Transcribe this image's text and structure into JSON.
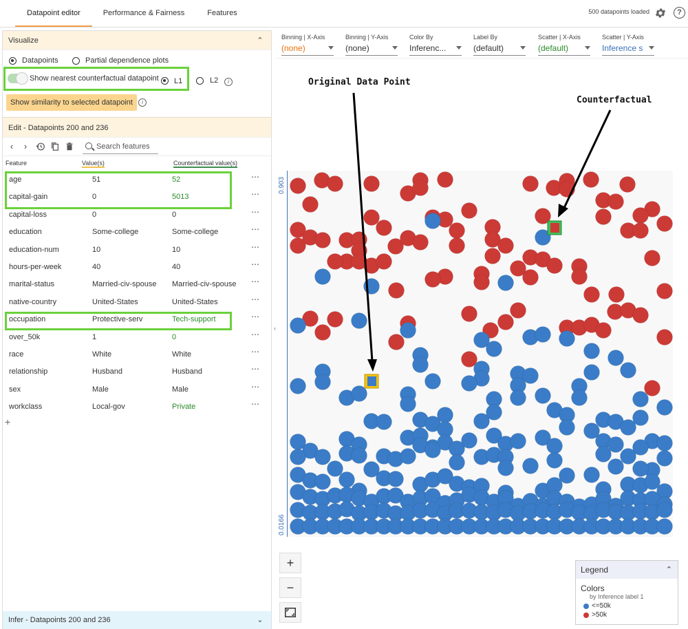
{
  "tabs": [
    {
      "label": "Datapoint editor",
      "active": true
    },
    {
      "label": "Performance & Fairness",
      "active": false
    },
    {
      "label": "Features",
      "active": false
    }
  ],
  "status": {
    "loaded": "500 datapoints loaded"
  },
  "visualize": {
    "title": "Visualize",
    "mode_datapoints": "Datapoints",
    "mode_pdp": "Partial dependence plots",
    "cf_toggle_label": "Show nearest counterfactual datapoint",
    "cf_toggle_on": true,
    "metric_l1": "L1",
    "metric_l2": "L2",
    "metric_selected": "L1",
    "similarity_button": "Show similarity to selected datapoint"
  },
  "edit": {
    "title": "Edit - Datapoints 200 and 236",
    "search_placeholder": "Search features",
    "col_feature": "Feature",
    "col_value": "Value(s)",
    "col_cf": "Counterfactual value(s)",
    "rows": [
      {
        "feature": "age",
        "value": "51",
        "cf": "52",
        "changed": true
      },
      {
        "feature": "capital-gain",
        "value": "0",
        "cf": "5013",
        "changed": true
      },
      {
        "feature": "capital-loss",
        "value": "0",
        "cf": "0",
        "changed": false
      },
      {
        "feature": "education",
        "value": "Some-college",
        "cf": "Some-college",
        "changed": false
      },
      {
        "feature": "education-num",
        "value": "10",
        "cf": "10",
        "changed": false
      },
      {
        "feature": "hours-per-week",
        "value": "40",
        "cf": "40",
        "changed": false
      },
      {
        "feature": "marital-status",
        "value": "Married-civ-spouse",
        "cf": "Married-civ-spouse",
        "changed": false
      },
      {
        "feature": "native-country",
        "value": "United-States",
        "cf": "United-States",
        "changed": false
      },
      {
        "feature": "occupation",
        "value": "Protective-serv",
        "cf": "Tech-support",
        "changed": true
      },
      {
        "feature": "over_50k",
        "value": "1",
        "cf": "0",
        "changed": true
      },
      {
        "feature": "race",
        "value": "White",
        "cf": "White",
        "changed": false
      },
      {
        "feature": "relationship",
        "value": "Husband",
        "cf": "Husband",
        "changed": false
      },
      {
        "feature": "sex",
        "value": "Male",
        "cf": "Male",
        "changed": false
      },
      {
        "feature": "workclass",
        "value": "Local-gov",
        "cf": "Private",
        "changed": true
      }
    ],
    "more_symbol": "⋯",
    "add_symbol": "+"
  },
  "infer": {
    "title": "Infer - Datapoints 200 and 236"
  },
  "controls": [
    {
      "label": "Binning | X-Axis",
      "value": "(none)",
      "color": "#e8710a"
    },
    {
      "label": "Binning | Y-Axis",
      "value": "(none)",
      "color": "#333333"
    },
    {
      "label": "Color By",
      "value": "Inferenc...",
      "color": "#333333"
    },
    {
      "label": "Label By",
      "value": "(default)",
      "color": "#333333"
    },
    {
      "label": "Scatter | X-Axis",
      "value": "(default)",
      "color": "#2a8a2a"
    },
    {
      "label": "Scatter | Y-Axis",
      "value": "Inference s",
      "color": "#3a70b5"
    }
  ],
  "plot": {
    "y_max_label": "0.903",
    "y_min_label": "0.0166",
    "zoom_in": "+",
    "zoom_out": "−",
    "original_label": "Original Data Point",
    "counterfactual_label": "Counterfactual"
  },
  "legend": {
    "title": "Legend",
    "colors_label": "Colors",
    "by_label": "by Inference label 1",
    "items": [
      {
        "label": "<=50k",
        "color": "#3a7cc7"
      },
      {
        "label": ">50k",
        "color": "#cc3a36"
      }
    ]
  },
  "colors": {
    "accent": "#f29d49",
    "blue_point": "#3a7cc7",
    "red_point": "#cc3a36",
    "highlight_green": "#6ad13b"
  }
}
